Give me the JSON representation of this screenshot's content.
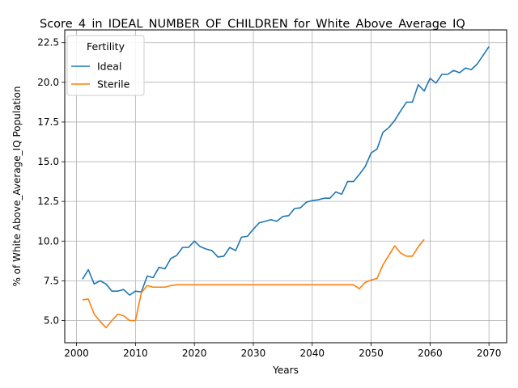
{
  "chart_data": {
    "type": "line",
    "title": "Score_4_in_IDEAL_NUMBER_OF_CHILDREN_for_White_Above_Average_IQ",
    "xlabel": "Years",
    "ylabel": "% of White Above_Average_IQ Population",
    "xlim": [
      1998,
      2073
    ],
    "ylim": [
      3.6,
      23.3
    ],
    "xticks": [
      2000,
      2010,
      2020,
      2030,
      2040,
      2050,
      2060,
      2070
    ],
    "yticks": [
      5.0,
      7.5,
      10.0,
      12.5,
      15.0,
      17.5,
      20.0,
      22.5
    ],
    "ytick_labels": [
      "5.0",
      "7.5",
      "10.0",
      "12.5",
      "15.0",
      "17.5",
      "20.0",
      "22.5"
    ],
    "grid": true,
    "legend": {
      "title": "Fertility",
      "placement": "top-left"
    },
    "series": [
      {
        "name": "Ideal",
        "color": "#1f77b4",
        "x": [
          2001,
          2002,
          2003,
          2004,
          2005,
          2006,
          2007,
          2008,
          2009,
          2010,
          2011,
          2012,
          2013,
          2014,
          2015,
          2016,
          2017,
          2018,
          2019,
          2020,
          2021,
          2022,
          2023,
          2024,
          2025,
          2026,
          2027,
          2028,
          2029,
          2030,
          2031,
          2032,
          2033,
          2034,
          2035,
          2036,
          2037,
          2038,
          2039,
          2040,
          2041,
          2042,
          2043,
          2044,
          2045,
          2046,
          2047,
          2048,
          2049,
          2050,
          2051,
          2052,
          2053,
          2054,
          2055,
          2056,
          2057,
          2058,
          2059,
          2060,
          2061,
          2062,
          2063,
          2064,
          2065,
          2066,
          2067,
          2068,
          2069,
          2070
        ],
        "values": [
          7.6,
          8.2,
          7.3,
          7.5,
          7.3,
          6.85,
          6.85,
          6.95,
          6.6,
          6.85,
          6.8,
          7.8,
          7.7,
          8.35,
          8.25,
          8.9,
          9.1,
          9.6,
          9.6,
          10.0,
          9.65,
          9.5,
          9.4,
          9.0,
          9.05,
          9.6,
          9.4,
          10.25,
          10.3,
          10.75,
          11.15,
          11.25,
          11.35,
          11.25,
          11.55,
          11.6,
          12.05,
          12.1,
          12.45,
          12.55,
          12.6,
          12.7,
          12.7,
          13.1,
          12.95,
          13.75,
          13.75,
          14.2,
          14.7,
          15.55,
          15.8,
          16.85,
          17.15,
          17.6,
          18.2,
          18.75,
          18.75,
          19.85,
          19.45,
          20.25,
          19.95,
          20.5,
          20.5,
          20.75,
          20.6,
          20.9,
          20.8,
          21.15,
          21.7,
          22.25
        ]
      },
      {
        "name": "Sterile",
        "color": "#ff7f0e",
        "x": [
          2001,
          2002,
          2003,
          2004,
          2005,
          2006,
          2007,
          2008,
          2009,
          2010,
          2011,
          2012,
          2013,
          2014,
          2015,
          2016,
          2017,
          2018,
          2019,
          2020,
          2021,
          2022,
          2023,
          2024,
          2025,
          2026,
          2027,
          2028,
          2029,
          2030,
          2031,
          2032,
          2033,
          2034,
          2035,
          2036,
          2037,
          2038,
          2039,
          2040,
          2041,
          2042,
          2043,
          2044,
          2045,
          2046,
          2047,
          2048,
          2049,
          2050,
          2051,
          2052,
          2053,
          2054,
          2055,
          2056,
          2057,
          2058,
          2059
        ],
        "values": [
          6.3,
          6.35,
          5.4,
          4.95,
          4.55,
          5.0,
          5.4,
          5.3,
          5.0,
          5.0,
          6.75,
          7.2,
          7.1,
          7.1,
          7.1,
          7.2,
          7.25,
          7.25,
          7.25,
          7.25,
          7.25,
          7.25,
          7.25,
          7.25,
          7.25,
          7.25,
          7.25,
          7.25,
          7.25,
          7.25,
          7.25,
          7.25,
          7.25,
          7.25,
          7.25,
          7.25,
          7.25,
          7.25,
          7.25,
          7.25,
          7.25,
          7.25,
          7.25,
          7.25,
          7.25,
          7.25,
          7.25,
          7.0,
          7.4,
          7.55,
          7.65,
          8.5,
          9.1,
          9.7,
          9.25,
          9.05,
          9.05,
          9.65,
          10.1
        ]
      }
    ]
  }
}
